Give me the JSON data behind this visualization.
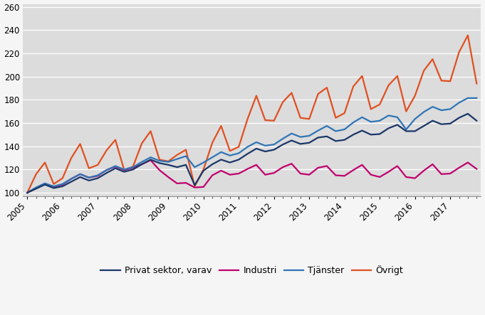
{
  "ylim": [
    97,
    262
  ],
  "yticks": [
    100,
    120,
    140,
    160,
    180,
    200,
    220,
    240,
    260
  ],
  "plot_bg": "#dcdcdc",
  "fig_bg": "#f5f5f5",
  "grid_color": "#ffffff",
  "line_colors": {
    "privat": "#1a3668",
    "industri": "#c0006e",
    "tjanster": "#2e75b6",
    "ovrigt": "#e05020"
  },
  "line_widths": {
    "privat": 1.6,
    "industri": 1.6,
    "tjanster": 1.6,
    "ovrigt": 1.6
  },
  "legend_labels": [
    "Privat sektor, varav",
    "Industri",
    "Tjänster",
    "Övrigt"
  ],
  "x_tick_years": [
    "2005",
    "2006",
    "2007",
    "2008",
    "2009",
    "2010",
    "2011",
    "2012",
    "2013",
    "2014",
    "2015",
    "2016",
    "2017"
  ],
  "privat_sektor": [
    100.0,
    103.5,
    107.0,
    104.0,
    105.5,
    109.5,
    113.5,
    110.5,
    112.5,
    117.0,
    121.0,
    118.0,
    120.0,
    124.5,
    128.5,
    125.5,
    124.0,
    122.0,
    124.0,
    106.5,
    119.0,
    124.5,
    128.5,
    126.0,
    128.5,
    133.5,
    138.0,
    135.5,
    137.0,
    141.5,
    145.0,
    142.0,
    143.0,
    147.5,
    148.5,
    144.5,
    145.5,
    150.0,
    153.5,
    150.0,
    150.5,
    155.5,
    158.5,
    153.0,
    153.0,
    157.5,
    162.0,
    159.0,
    159.5,
    164.5,
    168.0,
    162.0
  ],
  "industri": [
    100.0,
    104.0,
    108.0,
    105.0,
    107.0,
    112.0,
    116.0,
    113.0,
    114.5,
    119.5,
    122.5,
    119.5,
    121.5,
    124.5,
    128.0,
    119.5,
    113.5,
    108.0,
    108.5,
    104.5,
    105.0,
    115.0,
    119.0,
    115.5,
    116.5,
    120.5,
    124.0,
    115.5,
    117.0,
    122.0,
    125.0,
    116.5,
    115.5,
    121.5,
    123.0,
    115.0,
    114.5,
    119.5,
    124.0,
    115.5,
    113.5,
    118.0,
    123.0,
    113.5,
    112.5,
    119.0,
    124.5,
    116.0,
    116.5,
    121.5,
    126.0,
    120.5
  ],
  "tjanster": [
    100.0,
    104.5,
    108.0,
    105.5,
    107.5,
    112.0,
    116.0,
    113.0,
    115.0,
    119.5,
    123.0,
    120.0,
    122.0,
    126.5,
    130.5,
    127.5,
    126.5,
    129.0,
    131.5,
    122.0,
    126.0,
    130.5,
    135.0,
    132.0,
    134.0,
    139.5,
    143.5,
    140.5,
    141.5,
    146.5,
    151.0,
    148.0,
    149.0,
    153.5,
    157.5,
    153.0,
    154.5,
    160.5,
    165.0,
    161.0,
    162.0,
    166.5,
    165.0,
    154.5,
    163.5,
    169.5,
    174.0,
    171.0,
    172.0,
    177.5,
    181.5,
    181.5
  ],
  "ovrigt": [
    100.0,
    116.0,
    126.0,
    107.5,
    112.5,
    130.0,
    142.0,
    121.0,
    124.0,
    136.5,
    145.5,
    119.5,
    122.5,
    142.5,
    153.0,
    128.5,
    127.0,
    132.5,
    137.0,
    105.5,
    120.0,
    143.0,
    157.5,
    136.0,
    139.5,
    163.5,
    183.5,
    162.5,
    162.0,
    178.0,
    186.0,
    164.5,
    163.5,
    185.0,
    190.5,
    164.5,
    168.5,
    191.5,
    200.5,
    172.0,
    176.0,
    192.5,
    200.5,
    170.0,
    183.5,
    205.0,
    215.0,
    196.5,
    196.0,
    221.0,
    235.5,
    194.0
  ]
}
